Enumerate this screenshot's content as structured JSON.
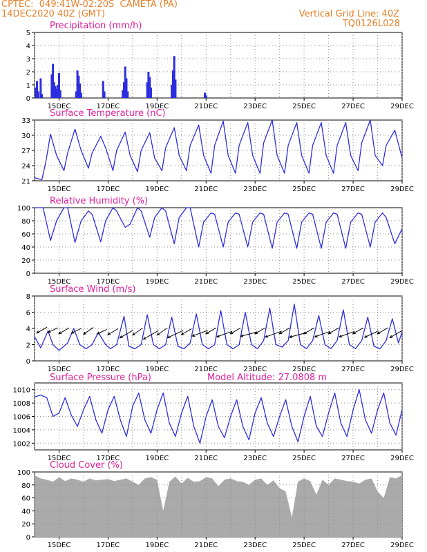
{
  "colors": {
    "header": "#e8802a",
    "panel_title": "#e0209c",
    "series": "#2d2de0",
    "grid": "#8c8c8c",
    "axis": "#000000",
    "cloud_fill": "#aaaaaa",
    "wind_arrow": "#000000"
  },
  "header": {
    "station": "CPTEC:  049:41W-02:20S  CAMETA (PA)",
    "run": "14DEC2020 40Z (GMT)",
    "grid_note": "Vertical Grid Line: 40Z",
    "code": "TQ0126L028"
  },
  "chart_data": [
    {
      "id": "precip",
      "type": "bar",
      "title": "Precipitation (mm/h)",
      "ylim": [
        0,
        5
      ],
      "yticks": [
        "0",
        "1",
        "2",
        "3",
        "4",
        "5"
      ],
      "xlim_days": [
        14.0,
        29.0
      ],
      "xticks": [
        "15DEC",
        "17DEC",
        "19DEC",
        "21DEC",
        "23DEC",
        "25DEC",
        "27DEC",
        "29DEC"
      ],
      "xtick_days": [
        15,
        17,
        19,
        21,
        23,
        25,
        27,
        29
      ],
      "x": [
        14.05,
        14.1,
        14.15,
        14.25,
        14.3,
        14.7,
        14.75,
        14.8,
        14.85,
        14.9,
        14.95,
        15.0,
        15.05,
        15.7,
        15.75,
        15.8,
        15.85,
        15.9,
        16.8,
        16.85,
        17.6,
        17.65,
        17.7,
        17.75,
        17.8,
        18.6,
        18.65,
        18.7,
        18.75,
        19.6,
        19.65,
        19.7,
        19.75,
        20.95,
        21.0
      ],
      "values": [
        0.8,
        1.3,
        0.5,
        1.5,
        0.3,
        1.8,
        2.6,
        1.2,
        0.9,
        0.7,
        1.0,
        1.9,
        0.6,
        0.5,
        2.1,
        1.7,
        1.1,
        0.4,
        1.3,
        0.5,
        0.6,
        1.2,
        2.4,
        1.5,
        0.5,
        1.2,
        2.0,
        1.6,
        0.8,
        1.0,
        2.1,
        3.2,
        1.4,
        0.4,
        0.2
      ]
    },
    {
      "id": "temp",
      "type": "line",
      "title": "Surface Temperature (nC)",
      "ylim": [
        21,
        33
      ],
      "yticks": [
        "21",
        "24",
        "27",
        "30",
        "33"
      ],
      "ytick_values": [
        21,
        24,
        27,
        30,
        33
      ],
      "xlim_days": [
        14.0,
        29.0
      ],
      "xticks": [
        "15DEC",
        "17DEC",
        "19DEC",
        "21DEC",
        "23DEC",
        "25DEC",
        "27DEC",
        "29DEC"
      ],
      "xtick_days": [
        15,
        17,
        19,
        21,
        23,
        25,
        27,
        29
      ],
      "x": [
        14.0,
        14.3,
        14.45,
        14.65,
        14.9,
        15.2,
        15.35,
        15.65,
        15.9,
        16.2,
        16.35,
        16.7,
        16.9,
        17.2,
        17.35,
        17.7,
        17.9,
        18.2,
        18.35,
        18.7,
        18.9,
        19.2,
        19.35,
        19.7,
        19.9,
        20.2,
        20.35,
        20.7,
        20.9,
        21.2,
        21.35,
        21.7,
        21.9,
        22.2,
        22.35,
        22.7,
        22.9,
        23.2,
        23.35,
        23.7,
        23.9,
        24.2,
        24.35,
        24.7,
        24.9,
        25.2,
        25.35,
        25.7,
        25.9,
        26.2,
        26.35,
        26.7,
        26.9,
        27.2,
        27.35,
        27.7,
        27.9,
        28.2,
        28.35,
        28.7,
        29.0
      ],
      "values": [
        21.6,
        21.2,
        24.5,
        30.2,
        26.0,
        23.0,
        26.5,
        31.2,
        27.0,
        23.5,
        26.5,
        29.8,
        27.5,
        23.0,
        27.0,
        30.6,
        26.0,
        22.8,
        27.0,
        30.5,
        25.5,
        23.0,
        27.5,
        31.5,
        26.0,
        23.0,
        28.0,
        32.0,
        26.0,
        22.5,
        28.0,
        32.8,
        26.0,
        22.5,
        28.0,
        32.5,
        26.0,
        22.5,
        28.5,
        33.0,
        26.0,
        22.5,
        28.0,
        32.5,
        26.0,
        22.5,
        28.0,
        32.5,
        26.0,
        22.5,
        28.0,
        32.5,
        26.0,
        23.0,
        28.5,
        33.0,
        26.0,
        24.0,
        28.0,
        31.0,
        25.5
      ]
    },
    {
      "id": "rh",
      "type": "line",
      "title": "Relative Humidity (%)",
      "ylim": [
        0,
        100
      ],
      "yticks": [
        "0",
        "20",
        "40",
        "60",
        "80",
        "100"
      ],
      "ytick_values": [
        0,
        20,
        40,
        60,
        80,
        100
      ],
      "xlim_days": [
        14.0,
        29.0
      ],
      "xticks": [
        "15DEC",
        "17DEC",
        "19DEC",
        "21DEC",
        "23DEC",
        "25DEC",
        "27DEC",
        "29DEC"
      ],
      "xtick_days": [
        15,
        17,
        19,
        21,
        23,
        25,
        27,
        29
      ],
      "x": [
        14.0,
        14.35,
        14.65,
        14.9,
        15.2,
        15.35,
        15.65,
        15.9,
        16.2,
        16.35,
        16.7,
        16.9,
        17.2,
        17.35,
        17.7,
        17.9,
        18.2,
        18.35,
        18.7,
        18.9,
        19.2,
        19.35,
        19.7,
        19.9,
        20.2,
        20.35,
        20.7,
        20.9,
        21.2,
        21.35,
        21.7,
        21.9,
        22.2,
        22.35,
        22.7,
        22.9,
        23.2,
        23.35,
        23.7,
        23.9,
        24.2,
        24.35,
        24.7,
        24.9,
        25.2,
        25.35,
        25.7,
        25.9,
        26.2,
        26.35,
        26.7,
        26.9,
        27.2,
        27.35,
        27.7,
        27.9,
        28.2,
        28.35,
        28.7,
        29.0
      ],
      "values": [
        100,
        100,
        50,
        80,
        100,
        100,
        47,
        80,
        95,
        90,
        48,
        80,
        100,
        95,
        70,
        75,
        100,
        95,
        55,
        85,
        100,
        95,
        45,
        85,
        100,
        100,
        40,
        78,
        92,
        90,
        40,
        78,
        92,
        90,
        40,
        78,
        92,
        90,
        38,
        78,
        92,
        90,
        38,
        78,
        92,
        90,
        38,
        78,
        92,
        90,
        38,
        78,
        92,
        90,
        40,
        78,
        92,
        85,
        45,
        68
      ]
    },
    {
      "id": "wind",
      "type": "line",
      "title": "Surface Wind (m/s)",
      "ylim": [
        0,
        8
      ],
      "yticks": [
        "0",
        "2",
        "4",
        "6",
        "8"
      ],
      "ytick_values": [
        0,
        2,
        4,
        6,
        8
      ],
      "xlim_days": [
        14.0,
        29.0
      ],
      "xticks": [
        "15DEC",
        "17DEC",
        "19DEC",
        "21DEC",
        "23DEC",
        "25DEC",
        "27DEC",
        "29DEC"
      ],
      "xtick_days": [
        15,
        17,
        19,
        21,
        23,
        25,
        27,
        29
      ],
      "x": [
        14.0,
        14.25,
        14.55,
        14.75,
        15.0,
        15.35,
        15.6,
        15.85,
        16.1,
        16.35,
        16.6,
        16.9,
        17.1,
        17.35,
        17.65,
        17.85,
        18.1,
        18.35,
        18.6,
        18.85,
        19.1,
        19.35,
        19.6,
        19.85,
        20.1,
        20.35,
        20.6,
        20.85,
        21.1,
        21.35,
        21.6,
        21.85,
        22.1,
        22.35,
        22.6,
        22.85,
        23.1,
        23.35,
        23.6,
        23.85,
        24.1,
        24.35,
        24.6,
        24.85,
        25.1,
        25.35,
        25.6,
        25.85,
        26.1,
        26.35,
        26.6,
        26.85,
        27.1,
        27.35,
        27.6,
        27.85,
        28.1,
        28.35,
        28.6,
        28.85,
        29.0
      ],
      "values": [
        3.0,
        1.6,
        3.7,
        2.0,
        1.3,
        2.2,
        4.0,
        2.0,
        1.5,
        2.0,
        3.5,
        2.0,
        1.5,
        2.0,
        5.5,
        1.8,
        1.5,
        2.0,
        5.7,
        2.0,
        1.5,
        2.0,
        5.4,
        1.8,
        1.5,
        2.2,
        5.8,
        2.0,
        1.5,
        2.0,
        6.2,
        2.0,
        1.5,
        2.0,
        6.0,
        2.0,
        1.5,
        2.5,
        6.5,
        2.0,
        1.7,
        2.5,
        7.0,
        2.0,
        1.5,
        2.5,
        5.6,
        2.0,
        1.5,
        2.5,
        6.3,
        2.0,
        1.5,
        2.5,
        5.4,
        1.8,
        1.5,
        2.5,
        5.2,
        2.2,
        3.6
      ],
      "arrows_days": [
        14.3,
        14.75,
        15.2,
        15.7,
        16.2,
        16.75,
        17.2,
        17.75,
        18.2,
        18.75,
        19.2,
        19.75,
        20.2,
        20.75,
        21.2,
        21.75,
        22.2,
        22.75,
        23.2,
        23.75,
        24.2,
        24.75,
        25.2,
        25.75,
        26.2,
        26.75,
        27.2,
        27.75,
        28.2,
        28.75
      ],
      "arrows_speed": [
        3.5,
        3.0,
        3.5,
        3.0,
        3.5,
        3.0,
        3.5,
        5.0,
        3.5,
        6.0,
        3.5,
        6.0,
        3.5,
        5.5,
        3.5,
        5.5,
        3.5,
        6.0,
        3.5,
        6.0,
        3.5,
        6.0,
        3.5,
        5.5,
        3.5,
        5.5,
        3.5,
        5.0,
        3.5,
        4.5
      ],
      "arrows_dir_from_deg": [
        60,
        65,
        60,
        65,
        55,
        65,
        60,
        60,
        55,
        60,
        55,
        65,
        60,
        70,
        60,
        70,
        60,
        75,
        60,
        70,
        60,
        75,
        60,
        70,
        60,
        70,
        60,
        65,
        60,
        60
      ],
      "arrows_level": [
        3.8,
        3.8,
        3.7,
        3.7,
        3.7,
        3.6,
        3.6,
        3.3,
        3.6,
        3.2,
        3.6,
        3.3,
        3.6,
        3.4,
        3.7,
        3.3,
        3.7,
        3.3,
        3.7,
        3.3,
        3.7,
        3.2,
        3.7,
        3.3,
        3.7,
        3.3,
        3.7,
        3.3,
        3.7,
        3.3
      ]
    },
    {
      "id": "pressure",
      "type": "line",
      "title": "Surface Pressure (hPa)",
      "subtitle": "Model Altitude: 27.0808 m",
      "ylim": [
        1001,
        1011
      ],
      "yticks": [
        "1002",
        "1004",
        "1006",
        "1008",
        "1010"
      ],
      "ytick_values": [
        1002,
        1004,
        1006,
        1008,
        1010
      ],
      "xlim_days": [
        14.0,
        29.0
      ],
      "xticks": [
        "15DEC",
        "17DEC",
        "19DEC",
        "21DEC",
        "23DEC",
        "25DEC",
        "27DEC",
        "29DEC"
      ],
      "xtick_days": [
        15,
        17,
        19,
        21,
        23,
        25,
        27,
        29
      ],
      "x": [
        14.0,
        14.25,
        14.5,
        14.75,
        15.0,
        15.25,
        15.5,
        15.75,
        16.0,
        16.25,
        16.5,
        16.75,
        17.0,
        17.25,
        17.5,
        17.75,
        18.0,
        18.25,
        18.5,
        18.75,
        19.0,
        19.25,
        19.5,
        19.75,
        20.0,
        20.25,
        20.5,
        20.75,
        21.0,
        21.25,
        21.5,
        21.75,
        22.0,
        22.25,
        22.5,
        22.75,
        23.0,
        23.25,
        23.5,
        23.75,
        24.0,
        24.25,
        24.5,
        24.75,
        25.0,
        25.25,
        25.5,
        25.75,
        26.0,
        26.25,
        26.5,
        26.75,
        27.0,
        27.25,
        27.5,
        27.75,
        28.0,
        28.25,
        28.5,
        28.75,
        29.0
      ],
      "values": [
        1008.9,
        1009.2,
        1008.8,
        1006.0,
        1006.5,
        1008.8,
        1006.2,
        1004.5,
        1007.0,
        1009.0,
        1005.5,
        1003.5,
        1007.0,
        1009.0,
        1005.5,
        1003.0,
        1007.5,
        1009.5,
        1005.5,
        1003.5,
        1007.0,
        1009.5,
        1005.0,
        1003.0,
        1006.5,
        1009.0,
        1004.5,
        1002.0,
        1006.0,
        1008.5,
        1004.5,
        1002.8,
        1006.0,
        1008.5,
        1004.5,
        1002.5,
        1006.5,
        1008.8,
        1005.0,
        1003.0,
        1006.0,
        1008.5,
        1004.5,
        1002.2,
        1006.0,
        1009.0,
        1004.5,
        1003.0,
        1006.5,
        1009.5,
        1005.0,
        1003.0,
        1007.0,
        1010.0,
        1005.5,
        1003.5,
        1007.0,
        1009.5,
        1005.0,
        1003.2,
        1007.0
      ]
    },
    {
      "id": "cloud",
      "type": "area",
      "title": "Cloud Cover (%)",
      "ylim": [
        0,
        100
      ],
      "yticks": [
        "0",
        "20",
        "40",
        "60",
        "80",
        "100"
      ],
      "ytick_values": [
        0,
        20,
        40,
        60,
        80,
        100
      ],
      "xlim_days": [
        14.0,
        29.0
      ],
      "xticks": [
        "15DEC",
        "17DEC",
        "19DEC",
        "21DEC",
        "23DEC",
        "25DEC",
        "27DEC",
        "29DEC"
      ],
      "xtick_days": [
        15,
        17,
        19,
        21,
        23,
        25,
        27,
        29
      ],
      "x": [
        14.0,
        14.25,
        14.5,
        14.75,
        15.0,
        15.25,
        15.5,
        15.75,
        16.0,
        16.25,
        16.5,
        16.75,
        17.0,
        17.25,
        17.5,
        17.75,
        18.0,
        18.25,
        18.5,
        18.75,
        19.0,
        19.25,
        19.5,
        19.75,
        20.0,
        20.25,
        20.5,
        20.75,
        21.0,
        21.25,
        21.5,
        21.75,
        22.0,
        22.25,
        22.5,
        22.75,
        23.0,
        23.25,
        23.5,
        23.75,
        24.0,
        24.25,
        24.5,
        24.75,
        25.0,
        25.25,
        25.5,
        25.75,
        26.0,
        26.25,
        26.5,
        26.75,
        27.0,
        27.25,
        27.5,
        27.75,
        28.0,
        28.25,
        28.5,
        28.75,
        29.0
      ],
      "values": [
        95,
        90,
        88,
        85,
        92,
        86,
        90,
        88,
        85,
        90,
        87,
        88,
        89,
        86,
        88,
        90,
        85,
        80,
        90,
        92,
        88,
        40,
        85,
        93,
        82,
        91,
        85,
        86,
        92,
        90,
        78,
        88,
        90,
        86,
        85,
        80,
        88,
        90,
        80,
        87,
        75,
        70,
        30,
        85,
        90,
        86,
        65,
        88,
        80,
        90,
        88,
        86,
        85,
        82,
        88,
        90,
        70,
        60,
        92,
        90,
        95
      ]
    }
  ]
}
